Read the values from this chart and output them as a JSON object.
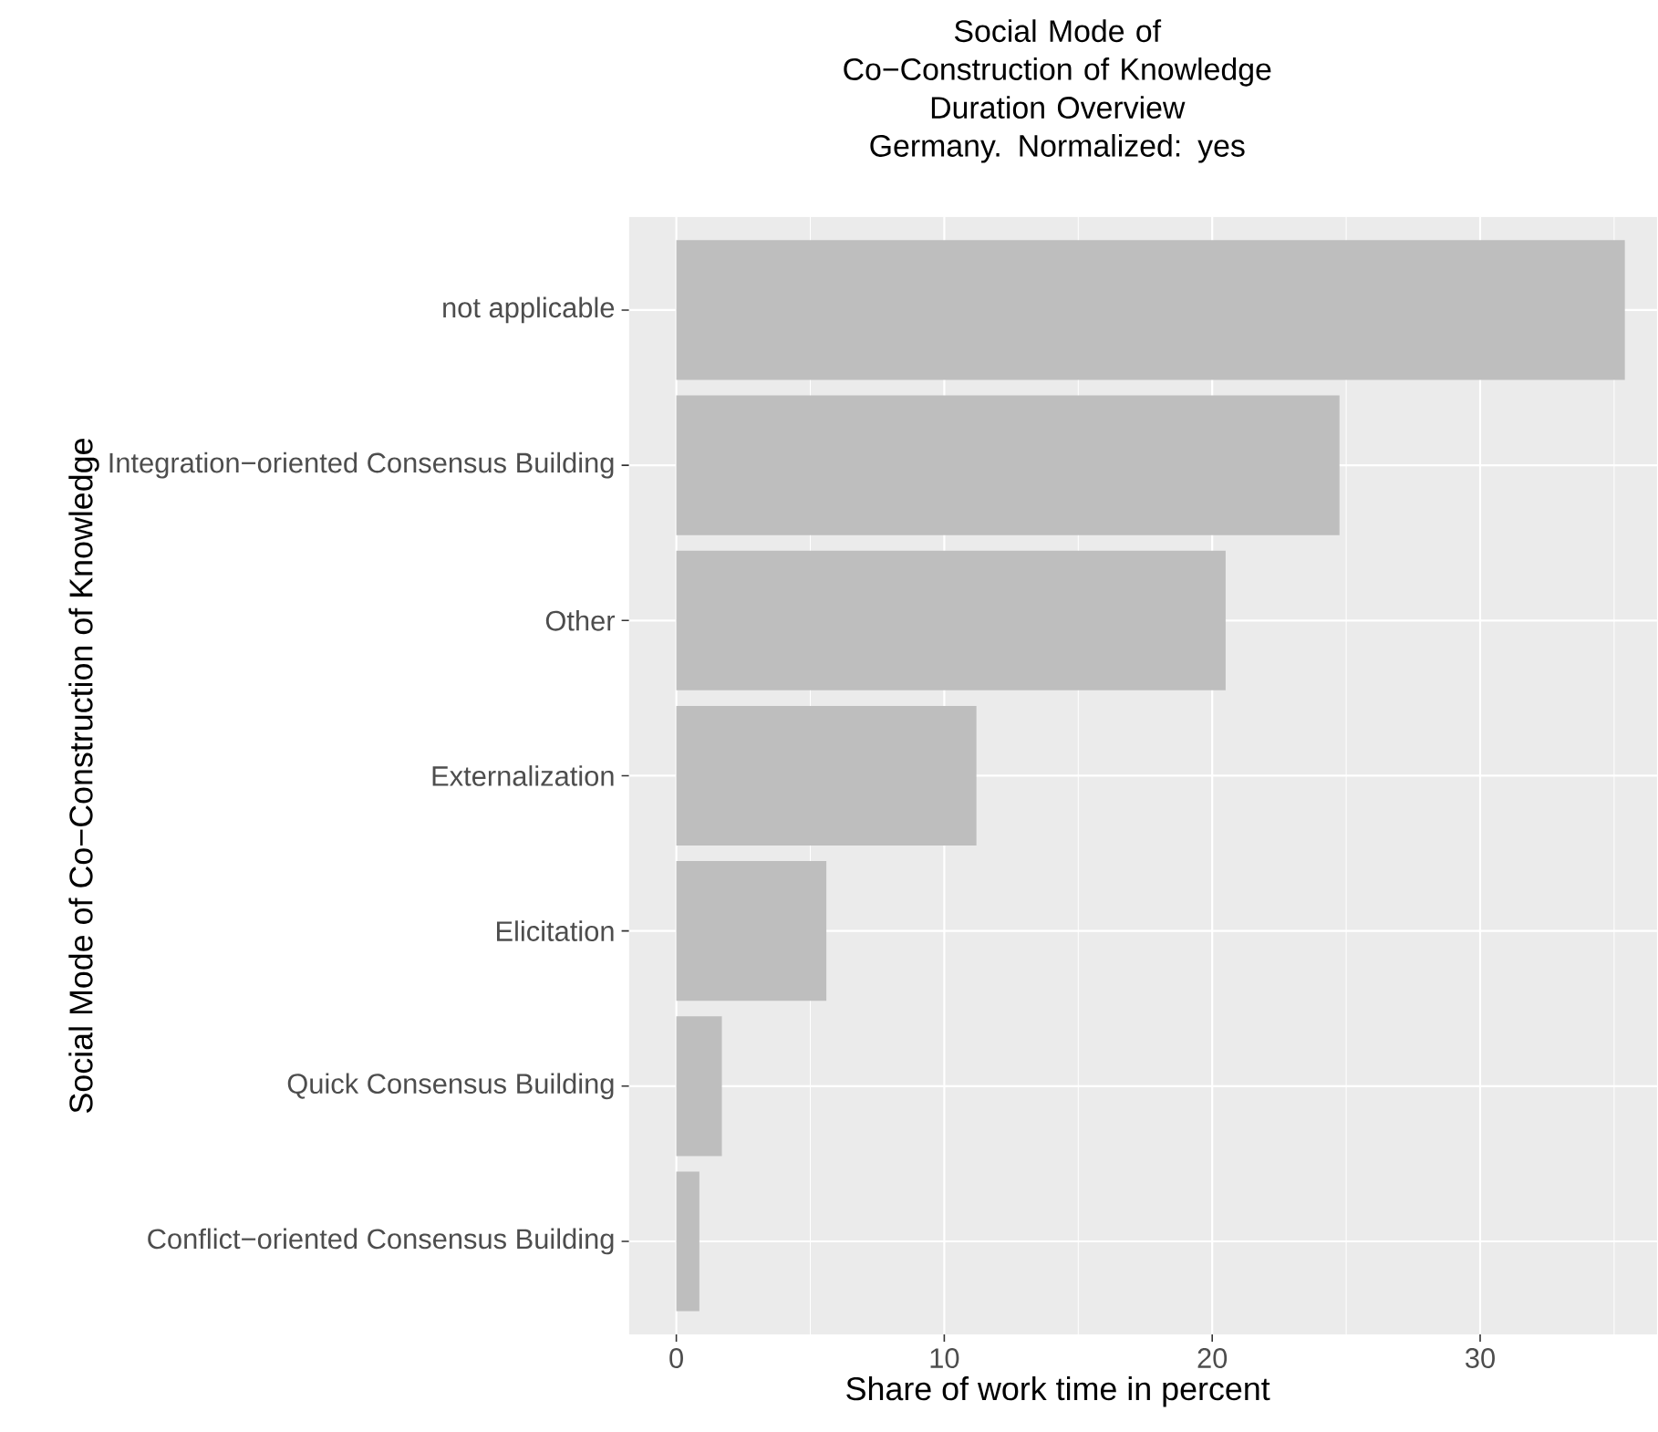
{
  "chart_data": {
    "type": "bar",
    "orientation": "horizontal",
    "title": "Social Mode of Co−Construction of Knowledge",
    "subtitle": "Duration Overview Germany. Normalized: yes",
    "xlabel": "Share of work time in percent",
    "ylabel": "Social Mode of Co−Construction of Knowledge",
    "categories": [
      "not applicable",
      "Integration−oriented Consensus Building",
      "Other",
      "Externalization",
      "Elicitation",
      "Quick Consensus Building",
      "Conflict−oriented Consensus Building"
    ],
    "values": [
      35.4,
      24.75,
      20.5,
      11.2,
      5.6,
      1.7,
      0.86
    ],
    "color": "#bebebe",
    "xlim": [
      -1.77,
      36.6
    ],
    "xticks": [
      0,
      10,
      20,
      30
    ],
    "grid": true
  }
}
